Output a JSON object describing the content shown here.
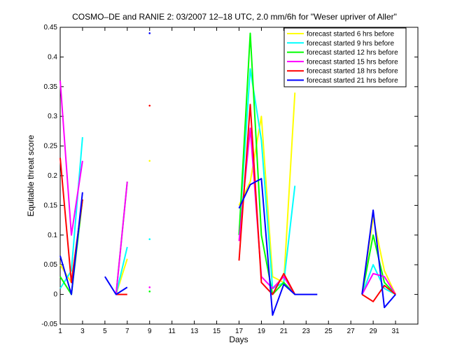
{
  "chart_data": {
    "type": "line",
    "title": "COSMO–DE and RANIE 2: 03/2007 12–18 UTC, 2.0 mm/6h for \"Weser upriver of Aller\"",
    "xlabel": "Days",
    "ylabel": "Equitable threat score",
    "xlim": [
      1,
      33
    ],
    "ylim": [
      -0.05,
      0.45
    ],
    "xticks": [
      1,
      3,
      5,
      7,
      9,
      11,
      13,
      15,
      17,
      19,
      21,
      23,
      25,
      27,
      29,
      31
    ],
    "yticks": [
      -0.05,
      0,
      0.05,
      0.1,
      0.15,
      0.2,
      0.25,
      0.3,
      0.35,
      0.4,
      0.45
    ],
    "legend_position": "top-right",
    "grid": false,
    "series": [
      {
        "name": "forecast started  6 hrs before",
        "color": "#ffff00",
        "segments": [
          [
            [
              1,
              0.05
            ],
            [
              2,
              0.02
            ],
            [
              3,
              0.16
            ]
          ],
          [
            [
              6,
              0.0
            ],
            [
              7,
              0.06
            ]
          ],
          [
            [
              9,
              0.225
            ]
          ],
          [
            [
              17,
              0.15
            ],
            [
              18,
              0.19
            ],
            [
              19,
              0.3
            ],
            [
              20,
              0.03
            ],
            [
              21,
              0.02
            ],
            [
              22,
              0.34
            ]
          ],
          [
            [
              28,
              0.0
            ],
            [
              29,
              0.13
            ],
            [
              30,
              0.04
            ],
            [
              31,
              0.0
            ]
          ]
        ]
      },
      {
        "name": "forecast started  9 hrs before",
        "color": "#00ffff",
        "segments": [
          [
            [
              1,
              0.01
            ],
            [
              2,
              0.04
            ],
            [
              3,
              0.265
            ]
          ],
          [
            [
              6,
              0.0
            ],
            [
              7,
              0.08
            ]
          ],
          [
            [
              9,
              0.093
            ]
          ],
          [
            [
              17,
              0.1
            ],
            [
              18,
              0.38
            ],
            [
              19,
              0.26
            ],
            [
              20,
              0.01
            ],
            [
              21,
              0.02
            ],
            [
              22,
              0.183
            ]
          ],
          [
            [
              28,
              0.0
            ],
            [
              29,
              0.05
            ],
            [
              30,
              0.01
            ],
            [
              31,
              0.0
            ]
          ]
        ]
      },
      {
        "name": "forecast started 12 hrs before",
        "color": "#00ff00",
        "segments": [
          [
            [
              1,
              0.03
            ],
            [
              2,
              0.0
            ],
            [
              3,
              0.16
            ]
          ],
          [
            [
              6,
              0.0
            ],
            [
              7,
              0.19
            ]
          ],
          [
            [
              9,
              0.005
            ]
          ],
          [
            [
              17,
              0.1
            ],
            [
              18,
              0.44
            ],
            [
              19,
              0.1
            ],
            [
              20,
              0.0
            ],
            [
              21,
              0.02
            ],
            [
              22,
              0.0
            ]
          ],
          [
            [
              28,
              0.0
            ],
            [
              29,
              0.1
            ],
            [
              30,
              0.02
            ],
            [
              31,
              0.0
            ]
          ]
        ]
      },
      {
        "name": "forecast started 15 hrs before",
        "color": "#ff00ff",
        "segments": [
          [
            [
              1,
              0.36
            ],
            [
              2,
              0.1
            ],
            [
              3,
              0.225
            ]
          ],
          [
            [
              6,
              0.0
            ],
            [
              7,
              0.19
            ]
          ],
          [
            [
              9,
              0.012
            ]
          ],
          [
            [
              17,
              0.09
            ],
            [
              18,
              0.28
            ],
            [
              19,
              0.03
            ],
            [
              20,
              0.01
            ],
            [
              21,
              0.03
            ],
            [
              22,
              0.0
            ]
          ],
          [
            [
              28,
              0.0
            ],
            [
              29,
              0.035
            ],
            [
              30,
              0.03
            ],
            [
              31,
              0.0
            ]
          ]
        ]
      },
      {
        "name": "forecast started 18 hrs before",
        "color": "#ff0000",
        "segments": [
          [
            [
              1,
              0.23
            ],
            [
              2,
              0.02
            ],
            [
              3,
              0.16
            ]
          ],
          [
            [
              6,
              0.0
            ],
            [
              7,
              0.0
            ]
          ],
          [
            [
              9,
              0.318
            ]
          ],
          [
            [
              17,
              0.057
            ],
            [
              18,
              0.32
            ],
            [
              19,
              0.02
            ],
            [
              20,
              0.0
            ],
            [
              21,
              0.035
            ],
            [
              22,
              0.0
            ]
          ],
          [
            [
              28,
              0.0
            ],
            [
              29,
              -0.012
            ],
            [
              30,
              0.015
            ],
            [
              31,
              0.0
            ]
          ]
        ]
      },
      {
        "name": "forecast started 21 hrs before",
        "color": "#0000ff",
        "segments": [
          [
            [
              1,
              0.065
            ],
            [
              2,
              0.0
            ],
            [
              3,
              0.172
            ]
          ],
          [
            [
              5,
              0.03
            ],
            [
              6,
              0.0
            ],
            [
              7,
              0.012
            ]
          ],
          [
            [
              9,
              0.44
            ]
          ],
          [
            [
              17,
              0.145
            ],
            [
              18,
              0.185
            ],
            [
              19,
              0.195
            ],
            [
              20,
              -0.035
            ],
            [
              21,
              0.017
            ],
            [
              22,
              0.0
            ],
            [
              23,
              0.0
            ],
            [
              24,
              0.0
            ]
          ],
          [
            [
              28,
              0.0
            ],
            [
              29,
              0.142
            ],
            [
              30,
              -0.022
            ],
            [
              31,
              0.0
            ]
          ]
        ]
      }
    ]
  }
}
